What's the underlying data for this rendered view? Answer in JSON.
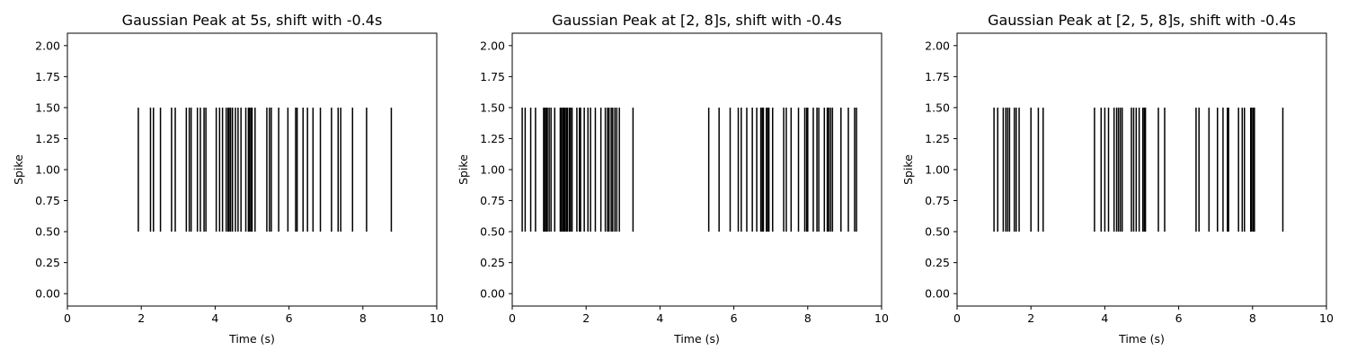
{
  "chart_data": [
    {
      "type": "eventplot",
      "title": "Gaussian Peak at 5s, shift with -0.4s",
      "xlabel": "Time (s)",
      "ylabel": "Spike",
      "xlim": [
        0,
        10
      ],
      "ylim": [
        -0.1,
        2.1
      ],
      "xticks": [
        "0",
        "2",
        "4",
        "6",
        "8",
        "10"
      ],
      "yticks": [
        "0.00",
        "0.25",
        "0.50",
        "0.75",
        "1.00",
        "1.25",
        "1.50",
        "1.75",
        "2.00"
      ],
      "line_range": [
        0.5,
        1.5
      ],
      "color": "#000000",
      "events": [
        1.92,
        2.25,
        2.33,
        2.52,
        2.82,
        2.92,
        3.22,
        3.3,
        3.35,
        3.52,
        3.6,
        3.7,
        3.75,
        4.03,
        4.12,
        4.2,
        4.3,
        4.35,
        4.38,
        4.42,
        4.47,
        4.55,
        4.62,
        4.7,
        4.83,
        4.9,
        4.93,
        4.97,
        5.0,
        5.08,
        5.4,
        5.47,
        5.52,
        5.72,
        5.97,
        6.18,
        6.22,
        6.38,
        6.5,
        6.65,
        6.85,
        7.15,
        7.33,
        7.4,
        7.72,
        8.1,
        8.77
      ]
    },
    {
      "type": "eventplot",
      "title": "Gaussian Peak at [2, 8]s, shift with -0.4s",
      "xlabel": "Time (s)",
      "ylabel": "Spike",
      "xlim": [
        0,
        10
      ],
      "ylim": [
        -0.1,
        2.1
      ],
      "xticks": [
        "0",
        "2",
        "4",
        "6",
        "8",
        "10"
      ],
      "yticks": [
        "0.00",
        "0.25",
        "0.50",
        "0.75",
        "1.00",
        "1.25",
        "1.50",
        "1.75",
        "2.00"
      ],
      "line_range": [
        0.5,
        1.5
      ],
      "color": "#000000",
      "events": [
        0.27,
        0.35,
        0.5,
        0.63,
        0.85,
        0.88,
        0.92,
        0.95,
        1.0,
        1.05,
        1.15,
        1.3,
        1.33,
        1.37,
        1.4,
        1.43,
        1.47,
        1.5,
        1.55,
        1.58,
        1.62,
        1.75,
        1.82,
        1.85,
        1.95,
        2.05,
        2.12,
        2.25,
        2.4,
        2.52,
        2.58,
        2.62,
        2.68,
        2.72,
        2.78,
        2.83,
        2.9,
        3.27,
        5.32,
        5.6,
        5.9,
        6.12,
        6.2,
        6.35,
        6.5,
        6.62,
        6.73,
        6.77,
        6.8,
        6.88,
        6.92,
        6.95,
        7.05,
        7.35,
        7.42,
        7.55,
        7.75,
        7.92,
        7.97,
        8.0,
        8.15,
        8.25,
        8.3,
        8.45,
        8.53,
        8.57,
        8.62,
        8.67,
        8.9,
        9.1,
        9.27,
        9.32
      ]
    },
    {
      "type": "eventplot",
      "title": "Gaussian Peak at [2, 5, 8]s, shift with -0.4s",
      "xlabel": "Time (s)",
      "ylabel": "Spike",
      "xlim": [
        0,
        10
      ],
      "ylim": [
        -0.1,
        2.1
      ],
      "xticks": [
        "0",
        "2",
        "4",
        "6",
        "8",
        "10"
      ],
      "yticks": [
        "0.00",
        "0.25",
        "0.50",
        "0.75",
        "1.00",
        "1.25",
        "1.50",
        "1.75",
        "2.00"
      ],
      "line_range": [
        0.5,
        1.5
      ],
      "color": "#000000",
      "events": [
        1.0,
        1.1,
        1.25,
        1.32,
        1.37,
        1.42,
        1.55,
        1.6,
        1.68,
        2.0,
        2.2,
        2.33,
        3.72,
        3.9,
        4.0,
        4.1,
        4.25,
        4.32,
        4.37,
        4.42,
        4.47,
        4.72,
        4.78,
        4.85,
        4.93,
        5.03,
        5.07,
        5.1,
        5.45,
        5.62,
        6.47,
        6.55,
        6.82,
        7.05,
        7.2,
        7.32,
        7.35,
        7.62,
        7.72,
        7.78,
        7.95,
        7.98,
        8.02,
        8.05,
        8.82
      ]
    }
  ]
}
